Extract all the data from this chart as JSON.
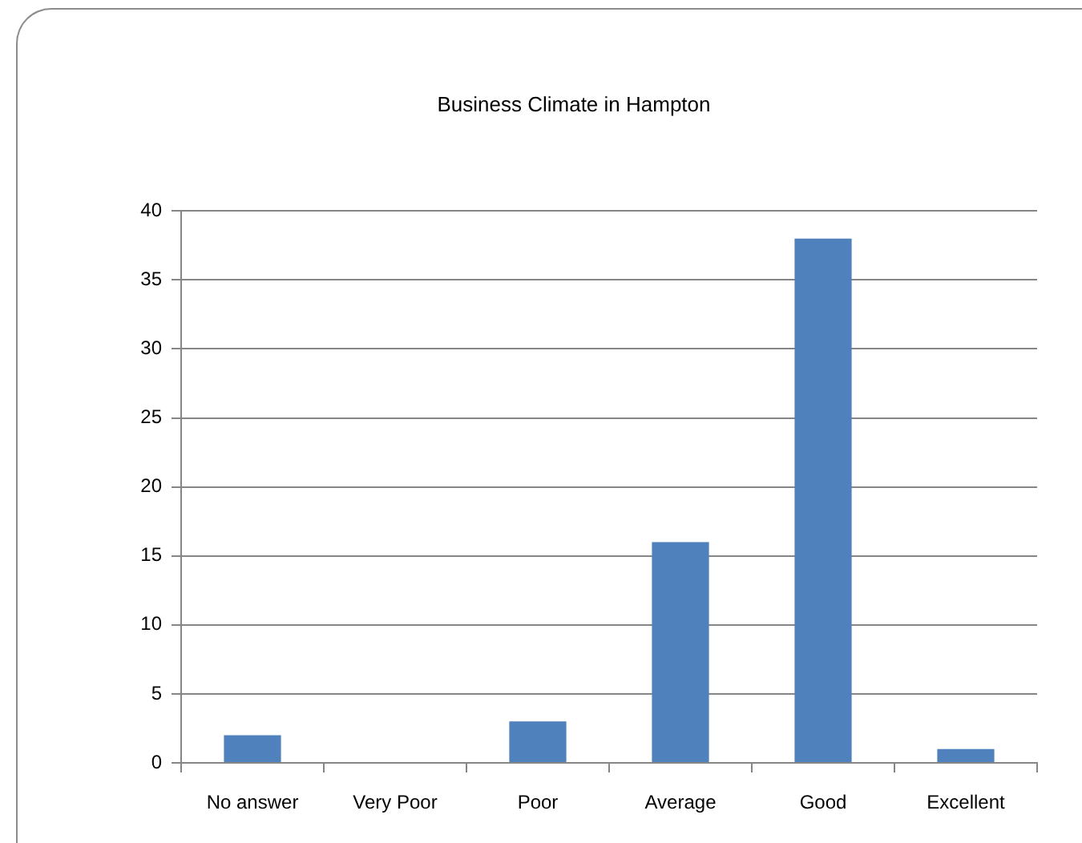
{
  "chart_data": {
    "type": "bar",
    "title": "Business Climate in Hampton",
    "categories": [
      "No answer",
      "Very Poor",
      "Poor",
      "Average",
      "Good",
      "Excellent"
    ],
    "values": [
      2,
      0,
      3,
      16,
      38,
      1
    ],
    "color": "#4f81bd",
    "ylim": [
      0,
      40
    ],
    "yticks": [
      0,
      5,
      10,
      15,
      20,
      25,
      30,
      35,
      40
    ],
    "grid": "y"
  }
}
